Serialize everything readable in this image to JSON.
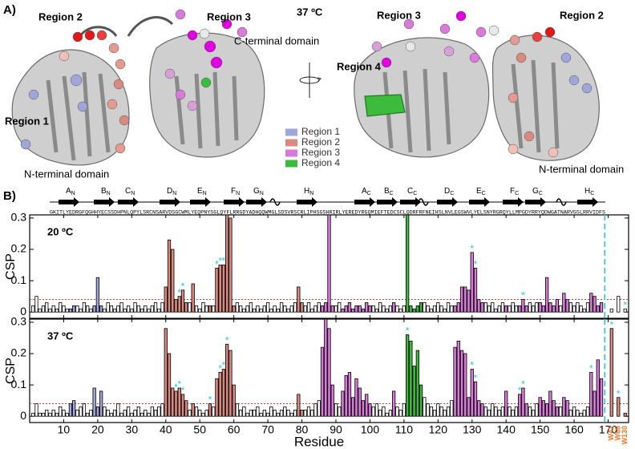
{
  "panel_a": {
    "label": "A)",
    "temperature": "37 ºC",
    "left": {
      "region2": "Region 2",
      "region3": "Region 3",
      "region1": "Region 1",
      "c_domain": "C-terminal domain",
      "n_domain": "N-terminal domain"
    },
    "right": {
      "region3": "Region 3",
      "region2": "Region 2",
      "region4": "Region 4",
      "n_domain": "N-terminal domain"
    }
  },
  "panel_b": {
    "label": "B)",
    "sequence": "GKITLYEDRGFQGHHYECSSDHPNLQPYLSRCNSARVDSGCWMLYEQPNYSGLQYFLRRGDYADHQQWMGLSDSVRSCRLIPHSGSHRIRLYEREDYRGQMIEFTEDCSCLQDRFRFNEIHSLNVLEGSWVLYELSNYRGRQYLLMPGDYRRYQDWGATNARVGSLRRVIDFS",
    "strands": [
      {
        "letter": "A",
        "sub": "N"
      },
      {
        "letter": "B",
        "sub": "N"
      },
      {
        "letter": "C",
        "sub": "N"
      },
      {
        "letter": "D",
        "sub": "N"
      },
      {
        "letter": "E",
        "sub": "N"
      },
      {
        "letter": "F",
        "sub": "N"
      },
      {
        "letter": "G",
        "sub": "N"
      },
      {
        "letter": "H",
        "sub": "N"
      },
      {
        "letter": "A",
        "sub": "C"
      },
      {
        "letter": "B",
        "sub": "C"
      },
      {
        "letter": "C",
        "sub": "C"
      },
      {
        "letter": "D",
        "sub": "C"
      },
      {
        "letter": "E",
        "sub": "C"
      },
      {
        "letter": "F",
        "sub": "C"
      },
      {
        "letter": "G",
        "sub": "C"
      },
      {
        "letter": "H",
        "sub": "C"
      }
    ]
  },
  "chart_data": [
    {
      "type": "bar",
      "title": "20 ºC",
      "ylabel": "CSP",
      "xlim": [
        0,
        176
      ],
      "xticks": [
        10,
        20,
        30,
        40,
        50,
        60,
        70,
        80,
        90,
        100,
        110,
        120,
        130,
        140,
        150,
        160,
        170
      ],
      "ylim": [
        -0.02,
        0.31
      ],
      "yticks": [
        0,
        0.1,
        0.2,
        0.3
      ],
      "threshold": 0.04,
      "threshold_color": "#e03a3a",
      "star_color": "#2cc6d8",
      "separator_color": "#2cc6d8",
      "series": [
        {
          "color": "#ffffff",
          "x": [
            1,
            2,
            3,
            4,
            5,
            6,
            7,
            8,
            9,
            10,
            11,
            14,
            15,
            16,
            17,
            18,
            22,
            23,
            24,
            25,
            26,
            27,
            28,
            29,
            30,
            31,
            32,
            33,
            34,
            35,
            36,
            37,
            38,
            39,
            47,
            49,
            50,
            51,
            52,
            54,
            61,
            62,
            63,
            64,
            65,
            66,
            67,
            68,
            69,
            70,
            71,
            72,
            73,
            74,
            75,
            76,
            77,
            78,
            81,
            82,
            83,
            84,
            85,
            90,
            91,
            101,
            102,
            103,
            104,
            105,
            106,
            108,
            109,
            110,
            116,
            117,
            118,
            119,
            120,
            121,
            122,
            123,
            124,
            134,
            135,
            136,
            137,
            138,
            139,
            141,
            142,
            143,
            147,
            148,
            149,
            156,
            159,
            160,
            161,
            162,
            163,
            164
          ],
          "values": [
            0.02,
            0.05,
            0.01,
            0.02,
            0.03,
            0.01,
            0.02,
            0.01,
            0.03,
            0.02,
            0.01,
            0.02,
            0.01,
            0.03,
            0.02,
            0.01,
            0.01,
            0.03,
            0.02,
            0.01,
            0.02,
            0.03,
            0.01,
            0.02,
            0.01,
            0.03,
            0.02,
            0.01,
            0.02,
            0.01,
            0.02,
            0.03,
            0.01,
            0.03,
            0.03,
            0.02,
            0.01,
            0.03,
            0.02,
            0.02,
            0.03,
            0.02,
            0.01,
            0.02,
            0.03,
            0.01,
            0.02,
            0.01,
            0.02,
            0.03,
            0.01,
            0.02,
            0.01,
            0.03,
            0.02,
            0.01,
            0.02,
            0.03,
            0.02,
            0.03,
            0.01,
            0.02,
            0.03,
            0.02,
            0.03,
            0.02,
            0.01,
            0.03,
            0.02,
            0.01,
            0.02,
            0.02,
            0.01,
            0.02,
            0.03,
            0.02,
            0.01,
            0.02,
            0.03,
            0.02,
            0.01,
            0.03,
            0.02,
            0.03,
            0.02,
            0.03,
            0.01,
            0.02,
            0.03,
            0.02,
            0.03,
            0.02,
            0.03,
            0.02,
            0.03,
            0.02,
            0.03,
            0.02,
            0.03,
            0.02,
            0.01,
            0.03
          ]
        },
        {
          "name": "Region 1",
          "color": "#a0a6d8",
          "x": [
            12,
            13,
            19,
            20,
            21
          ],
          "values": [
            0.01,
            0.02,
            0.02,
            0.11,
            0.02
          ]
        },
        {
          "name": "Region 2",
          "color": "#d98a80",
          "x": [
            40,
            41,
            42,
            43,
            44,
            45,
            46,
            48,
            53,
            55,
            56,
            57,
            58,
            59,
            60,
            79,
            80
          ],
          "values": [
            0.08,
            0.23,
            0.2,
            0.04,
            0.05,
            0.07,
            0.03,
            0.09,
            0.02,
            0.14,
            0.15,
            0.15,
            0.31,
            0.3,
            0.02,
            0.08,
            0.03
          ],
          "stars": [
            null,
            null,
            null,
            null,
            "*",
            "*",
            null,
            null,
            null,
            "*",
            "*",
            "*",
            null,
            null,
            null,
            null,
            null
          ]
        },
        {
          "name": "Region 3",
          "color": "#d77ad8",
          "x": [
            86,
            87,
            88,
            89,
            92,
            93,
            94,
            95,
            96,
            97,
            98,
            99,
            100,
            107,
            125,
            126,
            127,
            128,
            129,
            130,
            131,
            132,
            133,
            140,
            144,
            145,
            146,
            150,
            151,
            152,
            153,
            154,
            155,
            157,
            158,
            165,
            166,
            167,
            168
          ],
          "values": [
            0.02,
            0.03,
            0.31,
            0.02,
            0.01,
            0.02,
            0.03,
            0.01,
            0.02,
            0.02,
            0.01,
            0.03,
            0.02,
            0.03,
            0.02,
            0.03,
            0.08,
            0.08,
            0.07,
            0.19,
            0.14,
            0.04,
            0.03,
            0.02,
            0.02,
            0.04,
            0.02,
            0.03,
            0.02,
            0.11,
            0.03,
            0.02,
            0.04,
            0.06,
            0.04,
            0.06,
            0.05,
            0.02,
            0.03
          ],
          "stars": [
            null,
            null,
            null,
            null,
            null,
            null,
            null,
            null,
            null,
            null,
            null,
            null,
            null,
            null,
            null,
            null,
            null,
            null,
            null,
            "*",
            "*",
            null,
            null,
            null,
            null,
            "*",
            null,
            null,
            null,
            null,
            null,
            null,
            null,
            null,
            null,
            null,
            null,
            null,
            null
          ]
        },
        {
          "name": "Region 4",
          "color": "#3dbb3d",
          "x": [
            111,
            112,
            113,
            114,
            115
          ],
          "values": [
            0.31,
            0.02,
            0.01,
            0.02,
            0.03
          ]
        },
        {
          "color": "#ffffff",
          "values": [
            0.01,
            0.05,
            0.01
          ],
          "stars": [
            null,
            null,
            "*"
          ]
        }
      ]
    },
    {
      "type": "bar",
      "title": "37 ºC",
      "ylabel": "CSP",
      "xlabel": "Residue",
      "xlim": [
        0,
        176
      ],
      "xticks": [
        10,
        20,
        30,
        40,
        50,
        60,
        70,
        80,
        90,
        100,
        110,
        120,
        130,
        140,
        150,
        160,
        170
      ],
      "ylim": [
        -0.02,
        0.31
      ],
      "yticks": [
        0,
        0.1,
        0.2,
        0.3
      ],
      "threshold": 0.04,
      "threshold_color": "#e03a3a",
      "star_color": "#2cc6d8",
      "separator_color": "#2cc6d8",
      "category_color": "#e8782a",
      "series": [
        {
          "color": "#ffffff",
          "x": [
            1,
            2,
            3,
            4,
            5,
            6,
            7,
            8,
            9,
            10,
            11,
            14,
            15,
            16,
            17,
            18,
            22,
            23,
            24,
            25,
            26,
            27,
            28,
            29,
            30,
            31,
            32,
            33,
            34,
            35,
            36,
            37,
            38,
            39,
            47,
            49,
            50,
            51,
            52,
            54,
            61,
            62,
            63,
            64,
            65,
            66,
            67,
            68,
            69,
            70,
            71,
            72,
            73,
            74,
            75,
            76,
            77,
            78,
            81,
            82,
            83,
            84,
            85,
            90,
            91,
            101,
            102,
            103,
            104,
            105,
            106,
            108,
            109,
            110,
            116,
            117,
            118,
            119,
            120,
            121,
            122,
            123,
            124,
            134,
            135,
            136,
            137,
            138,
            139,
            141,
            142,
            143,
            147,
            148,
            149,
            156,
            159,
            160,
            161,
            162,
            163,
            164
          ],
          "values": [
            0.01,
            0.04,
            0.01,
            0.01,
            0.02,
            0.01,
            0.02,
            0.01,
            0.03,
            0.02,
            0.01,
            0.02,
            0.03,
            0.04,
            0.01,
            0.02,
            0.03,
            0.02,
            0.01,
            0.02,
            0.04,
            0.01,
            0.02,
            0.03,
            0.01,
            0.02,
            0.03,
            0.01,
            0.02,
            0.01,
            0.03,
            0.02,
            0.03,
            0.04,
            0.02,
            0.03,
            0.02,
            0.01,
            0.02,
            0.03,
            0.04,
            0.02,
            0.03,
            0.01,
            0.02,
            0.02,
            0.03,
            0.01,
            0.02,
            0.01,
            0.03,
            0.02,
            0.01,
            0.02,
            0.03,
            0.02,
            0.01,
            0.02,
            0.02,
            0.03,
            0.02,
            0.04,
            0.05,
            0.04,
            0.03,
            0.03,
            0.04,
            0.02,
            0.03,
            0.01,
            0.02,
            0.03,
            0.02,
            0.04,
            0.06,
            0.04,
            0.03,
            0.02,
            0.04,
            0.03,
            0.02,
            0.03,
            0.05,
            0.03,
            0.02,
            0.04,
            0.03,
            0.02,
            0.03,
            0.03,
            0.02,
            0.03,
            0.03,
            0.02,
            0.04,
            0.03,
            0.02,
            0.03,
            0.02,
            0.01,
            0.02,
            0.03
          ]
        },
        {
          "color": "#a0a6d8",
          "x": [
            12,
            13,
            19,
            20,
            21
          ],
          "values": [
            0.04,
            0.05,
            0.09,
            0.03,
            0.08
          ]
        },
        {
          "color": "#d98a80",
          "x": [
            40,
            41,
            42,
            43,
            44,
            45,
            46,
            48,
            53,
            55,
            56,
            57,
            58,
            59,
            60,
            79,
            80
          ],
          "values": [
            0.28,
            0.2,
            0.09,
            0.08,
            0.09,
            0.07,
            0.05,
            0.04,
            0.04,
            0.12,
            0.14,
            0.15,
            0.23,
            0.21,
            0.1,
            0.07,
            0.02
          ],
          "stars": [
            null,
            null,
            null,
            "*",
            "*",
            "*",
            null,
            null,
            "*",
            null,
            "*",
            "*",
            "*",
            null,
            null,
            null,
            null
          ]
        },
        {
          "color": "#d77ad8",
          "x": [
            86,
            87,
            88,
            89,
            92,
            93,
            94,
            95,
            96,
            97,
            98,
            99,
            100,
            107,
            125,
            126,
            127,
            128,
            129,
            130,
            131,
            132,
            133,
            140,
            144,
            145,
            146,
            150,
            151,
            152,
            153,
            154,
            155,
            157,
            158,
            165,
            166,
            167,
            168
          ],
          "values": [
            0.22,
            0.31,
            0.28,
            0.1,
            0.08,
            0.13,
            0.14,
            0.06,
            0.12,
            0.09,
            0.05,
            0.07,
            0.04,
            0.08,
            0.22,
            0.24,
            0.21,
            0.2,
            0.06,
            0.15,
            0.11,
            0.05,
            0.04,
            0.08,
            0.07,
            0.09,
            0.04,
            0.06,
            0.05,
            0.04,
            0.08,
            0.05,
            0.03,
            0.06,
            0.05,
            0.14,
            0.08,
            0.18,
            0.12
          ],
          "stars": [
            null,
            null,
            null,
            null,
            null,
            null,
            null,
            null,
            null,
            null,
            null,
            null,
            null,
            null,
            null,
            null,
            null,
            null,
            null,
            "*",
            "*",
            null,
            null,
            null,
            "*",
            "*",
            null,
            null,
            null,
            null,
            null,
            null,
            null,
            null,
            null,
            "*",
            null,
            null,
            null
          ]
        },
        {
          "color": "#3dbb3d",
          "x": [
            111,
            112,
            113,
            114,
            115
          ],
          "values": [
            0.26,
            0.24,
            0.16,
            0.21,
            0.1
          ],
          "stars": [
            "*",
            null,
            null,
            null,
            null
          ]
        },
        {
          "color": "#d98a80",
          "categories": [
            "W42",
            "W68",
            "W130"
          ],
          "values": [
            0.28,
            0.06,
            0.01
          ],
          "stars": [
            "*",
            "*",
            null
          ]
        }
      ]
    }
  ]
}
